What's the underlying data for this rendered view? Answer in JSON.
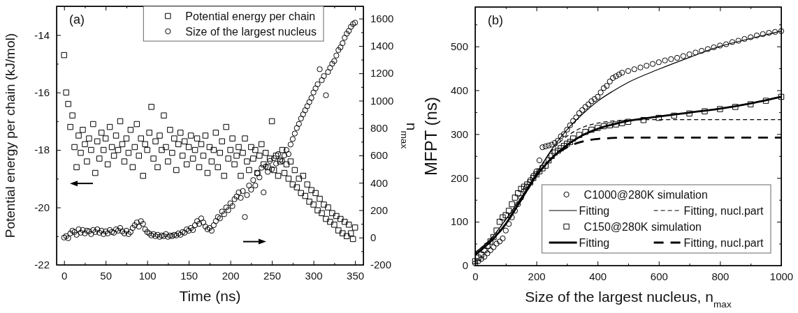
{
  "chart_data": [
    {
      "type": "scatter",
      "xlabel": "Time (ns)",
      "ylabel": "Potential energy per chain (kJ/mol)",
      "y2label": "n$_{max}$",
      "annotations": [
        "(a)"
      ],
      "legend": "top right",
      "grid": false,
      "xlim": [
        -9,
        360
      ],
      "xticks": [
        0,
        {
          "value": 25,
          "label": null
        },
        50,
        {
          "value": 75,
          "label": null
        },
        100,
        {
          "value": 125,
          "label": null
        },
        150,
        {
          "value": 175,
          "label": null
        },
        200,
        {
          "value": 225,
          "label": null
        },
        250,
        {
          "value": 275,
          "label": null
        },
        300,
        {
          "value": 325,
          "label": null
        },
        350
      ],
      "ylim": [
        -22,
        -13
      ],
      "yticks": [
        -22,
        {
          "value": -21,
          "label": null
        },
        -20,
        {
          "value": -19,
          "label": null
        },
        -18,
        {
          "value": -17,
          "label": null
        },
        -16,
        {
          "value": -15,
          "label": null
        },
        -14
      ],
      "y2lim": [
        -200,
        1690
      ],
      "y2ticks": [
        -200,
        {
          "value": -100,
          "label": null
        },
        0,
        {
          "value": 100,
          "label": null
        },
        200,
        {
          "value": 300,
          "label": null
        },
        400,
        {
          "value": 500,
          "label": null
        },
        600,
        {
          "value": 700,
          "label": null
        },
        800,
        {
          "value": 900,
          "label": null
        },
        1000,
        {
          "value": 1100,
          "label": null
        },
        1200,
        {
          "value": 1300,
          "label": null
        },
        1400,
        {
          "value": 1500,
          "label": null
        },
        1600
      ],
      "x": [
        0,
        2.5,
        5,
        7.5,
        10,
        12.5,
        15,
        17.5,
        20,
        22.5,
        25,
        27.5,
        30,
        32.5,
        35,
        37.5,
        40,
        42.5,
        45,
        47.5,
        50,
        52.5,
        55,
        57.5,
        60,
        62.5,
        65,
        67.5,
        70,
        72.5,
        75,
        77.5,
        80,
        82.5,
        85,
        87.5,
        90,
        92.5,
        95,
        97.5,
        100,
        102.5,
        105,
        107.5,
        110,
        112.5,
        115,
        117.5,
        120,
        122.5,
        125,
        127.5,
        130,
        132.5,
        135,
        137.5,
        140,
        142.5,
        145,
        147.5,
        150,
        152.5,
        155,
        157.5,
        160,
        162.5,
        165,
        167.5,
        170,
        172.5,
        175,
        177.5,
        180,
        182.5,
        185,
        187.5,
        190,
        192.5,
        195,
        197.5,
        200,
        202.5,
        205,
        207.5,
        210,
        212.5,
        215,
        217.5,
        220,
        222.5,
        225,
        227.5,
        230,
        232.5,
        235,
        237.5,
        240,
        242.5,
        245,
        247.5,
        250,
        252.5,
        255,
        257.5,
        260,
        262.5,
        265,
        267.5,
        270,
        272.5,
        275,
        277.5,
        280,
        282.5,
        285,
        287.5,
        290,
        292.5,
        295,
        297.5,
        300,
        302.5,
        305,
        307.5,
        310,
        312.5,
        315,
        317.5,
        320,
        322.5,
        325,
        327.5,
        330,
        332.5,
        335,
        337.5,
        340,
        342.5,
        345,
        347.5,
        350
      ],
      "series": [
        {
          "name": "Potential energy per chain",
          "marker": "square",
          "color": "#000000",
          "values": [
            -14.7,
            -16.0,
            -16.4,
            -17.2,
            -16.8,
            -17.9,
            -18.6,
            -17.5,
            -18.1,
            -17.3,
            -17.8,
            -18.4,
            -17.6,
            -18.0,
            -17.1,
            -18.8,
            -17.7,
            -18.3,
            -17.4,
            -18.0,
            -17.6,
            -18.5,
            -17.2,
            -17.9,
            -18.2,
            -17.5,
            -18.0,
            -17.0,
            -17.8,
            -18.4,
            -17.6,
            -18.1,
            -17.3,
            -18.6,
            -17.9,
            -17.1,
            -18.2,
            -17.6,
            -18.9,
            -17.8,
            -18.0,
            -17.4,
            -16.5,
            -18.3,
            -17.7,
            -18.6,
            -17.5,
            -18.0,
            -16.8,
            -17.9,
            -18.4,
            -17.3,
            -18.1,
            -17.6,
            -18.7,
            -17.8,
            -17.4,
            -18.2,
            -17.7,
            -18.5,
            -17.9,
            -17.5,
            -18.3,
            -18.0,
            -17.6,
            -18.6,
            -17.8,
            -18.2,
            -17.5,
            -18.8,
            -17.9,
            -18.4,
            -18.0,
            -17.4,
            -18.6,
            -18.1,
            -17.7,
            -18.9,
            -17.2,
            -18.3,
            -18.0,
            -17.6,
            -18.5,
            -18.2,
            -17.9,
            -18.9,
            -18.1,
            -17.6,
            -18.4,
            -18.7,
            -17.9,
            -18.3,
            -18.0,
            -18.8,
            -18.2,
            -17.8,
            -18.5,
            -18.1,
            -18.6,
            -18.3,
            -17.0,
            -18.7,
            -18.2,
            -18.9,
            -18.4,
            -18.0,
            -18.8,
            -18.5,
            -19.0,
            -18.4,
            -19.2,
            -18.7,
            -19.3,
            -19.0,
            -19.5,
            -18.9,
            -19.6,
            -19.2,
            -19.8,
            -19.4,
            -19.9,
            -19.5,
            -20.1,
            -19.7,
            -20.2,
            -19.9,
            -20.4,
            -20.0,
            -20.5,
            -20.2,
            -20.6,
            -20.3,
            -20.8,
            -20.4,
            -20.9,
            -20.5,
            -21.0,
            -20.6,
            -20.9,
            -21.1,
            -20.7
          ]
        },
        {
          "name": "Size of the largest nucleus",
          "marker": "circle",
          "axis": "y2",
          "color": "#000000",
          "values": [
            0,
            10,
            -5,
            30,
            50,
            40,
            20,
            60,
            35,
            55,
            30,
            50,
            45,
            25,
            55,
            40,
            60,
            35,
            50,
            25,
            45,
            30,
            55,
            40,
            35,
            60,
            50,
            70,
            45,
            30,
            50,
            25,
            40,
            70,
            90,
            110,
            80,
            120,
            100,
            60,
            40,
            30,
            15,
            25,
            10,
            20,
            5,
            15,
            10,
            25,
            5,
            15,
            10,
            20,
            15,
            30,
            20,
            40,
            35,
            60,
            50,
            70,
            55,
            90,
            120,
            100,
            140,
            110,
            80,
            60,
            70,
            50,
            90,
            120,
            150,
            140,
            190,
            170,
            220,
            200,
            250,
            230,
            280,
            300,
            330,
            290,
            340,
            150,
            310,
            380,
            350,
            420,
            380,
            470,
            440,
            510,
            330,
            520,
            480,
            560,
            500,
            580,
            540,
            610,
            570,
            560,
            600,
            640,
            610,
            680,
            720,
            760,
            800,
            830,
            870,
            900,
            930,
            960,
            990,
            1020,
            1060,
            1090,
            1120,
            1230,
            1150,
            1180,
            1040,
            1210,
            1240,
            1270,
            1290,
            1330,
            1370,
            1390,
            1420,
            1460,
            1490,
            1510,
            1540,
            1560,
            1570
          ]
        }
      ]
    },
    {
      "type": "scatter",
      "xlabel": "Size of the largest nucleus, n$_{max}$",
      "ylabel": "MFPT (ns)",
      "annotations": [
        "(b)"
      ],
      "legend": "bottom right",
      "grid": false,
      "xlim": [
        0,
        1000
      ],
      "xticks": [
        0,
        {
          "value": 100,
          "label": null
        },
        200,
        {
          "value": 300,
          "label": null
        },
        400,
        {
          "value": 500,
          "label": null
        },
        600,
        {
          "value": 700,
          "label": null
        },
        800,
        {
          "value": 900,
          "label": null
        },
        1000
      ],
      "ylim": [
        0,
        590
      ],
      "yticks": [
        0,
        {
          "value": 50,
          "label": null
        },
        100,
        {
          "value": 150,
          "label": null
        },
        200,
        {
          "value": 250,
          "label": null
        },
        300,
        {
          "value": 350,
          "label": null
        },
        400,
        {
          "value": 450,
          "label": null
        },
        500,
        {
          "value": 550,
          "label": null
        }
      ],
      "series": [
        {
          "name": "C1000@280K simulation",
          "marker": "circle",
          "color": "#000000",
          "x": [
            0,
            10,
            20,
            30,
            40,
            50,
            60,
            70,
            80,
            90,
            100,
            110,
            120,
            130,
            140,
            150,
            160,
            170,
            180,
            190,
            200,
            210,
            220,
            230,
            240,
            250,
            260,
            270,
            280,
            290,
            300,
            310,
            320,
            330,
            340,
            350,
            360,
            370,
            380,
            390,
            400,
            410,
            420,
            430,
            440,
            450,
            460,
            470,
            480,
            500,
            520,
            540,
            560,
            580,
            600,
            620,
            640,
            660,
            680,
            700,
            720,
            740,
            760,
            780,
            800,
            820,
            840,
            860,
            880,
            900,
            920,
            940,
            960,
            980,
            1000
          ],
          "values": [
            5,
            10,
            15,
            20,
            28,
            35,
            42,
            50,
            55,
            62,
            80,
            95,
            110,
            125,
            140,
            155,
            170,
            180,
            195,
            205,
            215,
            240,
            270,
            272,
            274,
            276,
            280,
            285,
            295,
            300,
            310,
            320,
            330,
            338,
            348,
            355,
            362,
            368,
            375,
            380,
            385,
            395,
            405,
            410,
            420,
            428,
            432,
            436,
            440,
            444,
            448,
            452,
            456,
            460,
            464,
            468,
            471,
            474,
            478,
            482,
            486,
            490,
            494,
            498,
            502,
            505,
            510,
            513,
            517,
            521,
            525,
            528,
            531,
            533,
            535
          ]
        },
        {
          "name": "Fitting",
          "type": "line",
          "line_style": "solid",
          "color": "#000000",
          "x": [
            0,
            50,
            100,
            150,
            200,
            250,
            300,
            350,
            400,
            450,
            500,
            600,
            700,
            800,
            900,
            1000
          ],
          "values": [
            30,
            60,
            105,
            155,
            210,
            265,
            310,
            345,
            375,
            398,
            418,
            448,
            475,
            500,
            518,
            535
          ]
        },
        {
          "name": "Fitting, nucl.part",
          "type": "line",
          "line_style": "dashed",
          "color": "#000000",
          "x": [
            0,
            50,
            100,
            150,
            200,
            250,
            300,
            350,
            400,
            450,
            500,
            600,
            1000
          ],
          "values": [
            30,
            60,
            105,
            155,
            210,
            262,
            295,
            315,
            325,
            330,
            332,
            333,
            333
          ]
        },
        {
          "name": "C150@280K simulation",
          "marker": "square",
          "color": "#000000",
          "x": [
            0,
            10,
            20,
            30,
            40,
            50,
            60,
            70,
            80,
            90,
            100,
            110,
            120,
            130,
            140,
            150,
            160,
            170,
            180,
            190,
            200,
            210,
            220,
            230,
            240,
            250,
            260,
            270,
            280,
            290,
            300,
            310,
            320,
            340,
            360,
            380,
            400,
            420,
            440,
            460,
            480,
            500,
            550,
            600,
            650,
            700,
            750,
            800,
            850,
            900,
            950,
            1000
          ],
          "values": [
            10,
            18,
            25,
            35,
            45,
            55,
            65,
            80,
            100,
            110,
            115,
            125,
            140,
            155,
            165,
            175,
            180,
            185,
            190,
            200,
            208,
            215,
            222,
            228,
            240,
            250,
            258,
            262,
            268,
            273,
            278,
            282,
            290,
            298,
            305,
            310,
            314,
            318,
            320,
            322,
            325,
            328,
            332,
            337,
            342,
            347,
            352,
            357,
            362,
            368,
            376,
            385
          ]
        },
        {
          "name": "Fitting",
          "type": "line",
          "line_style": "solid",
          "color": "#000000",
          "x": [
            0,
            50,
            100,
            150,
            200,
            250,
            300,
            350,
            400,
            450,
            500,
            600,
            700,
            800,
            900,
            1000
          ],
          "values": [
            25,
            55,
            95,
            150,
            205,
            245,
            275,
            297,
            312,
            322,
            330,
            340,
            349,
            358,
            370,
            385
          ]
        },
        {
          "name": "Fitting, nucl.part",
          "type": "line",
          "line_style": "dashed",
          "color": "#000000",
          "x": [
            0,
            50,
            100,
            150,
            200,
            250,
            300,
            350,
            400,
            500,
            1000
          ],
          "values": [
            25,
            55,
            95,
            150,
            205,
            245,
            270,
            283,
            289,
            292,
            292
          ]
        }
      ]
    }
  ]
}
